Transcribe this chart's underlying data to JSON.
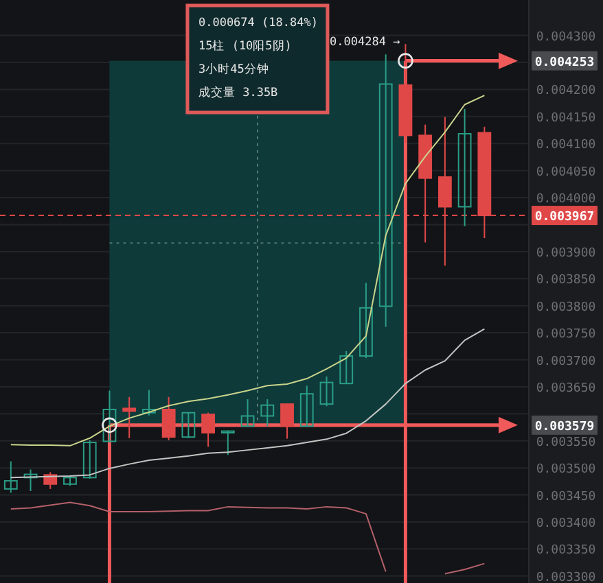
{
  "chart_data": {
    "type": "candlestick",
    "categories": [
      null,
      null,
      null,
      null,
      null,
      null,
      null,
      null,
      null,
      null,
      null,
      null,
      null,
      null,
      null,
      null,
      null,
      null,
      null,
      null,
      null,
      null,
      null,
      null,
      null
    ],
    "ohlc": [
      [
        0.003461,
        0.003512,
        0.003454,
        0.003476
      ],
      [
        0.003482,
        0.003497,
        0.003457,
        0.003488
      ],
      [
        0.003487,
        0.003492,
        0.003461,
        0.00347
      ],
      [
        0.00347,
        0.003484,
        0.003467,
        0.003482
      ],
      [
        0.003482,
        0.003551,
        0.00348,
        0.003547
      ],
      [
        0.003549,
        0.003643,
        0.003547,
        0.003608
      ],
      [
        0.00361,
        0.003631,
        0.003555,
        0.003605
      ],
      [
        0.003602,
        0.003644,
        0.003597,
        0.003608
      ],
      [
        0.003608,
        0.003631,
        0.003551,
        0.003557
      ],
      [
        0.003557,
        0.003602,
        0.003555,
        0.003602
      ],
      [
        0.003599,
        0.003602,
        0.003539,
        0.003565
      ],
      [
        0.003565,
        0.003568,
        0.003524,
        0.003568
      ],
      [
        0.003577,
        0.003627,
        0.003577,
        0.003596
      ],
      [
        0.003596,
        0.003627,
        0.003577,
        0.003616
      ],
      [
        0.003618,
        0.003618,
        0.003554,
        0.003577
      ],
      [
        0.003577,
        0.003652,
        0.003577,
        0.003637
      ],
      [
        0.003618,
        0.003669,
        0.003614,
        0.003658
      ],
      [
        0.003656,
        0.003716,
        0.003655,
        0.003707
      ],
      [
        0.003707,
        0.003842,
        0.003703,
        0.003796
      ],
      [
        0.003799,
        0.004265,
        0.003761,
        0.00421
      ],
      [
        0.004208,
        0.004284,
        0.004101,
        0.004115
      ],
      [
        0.004115,
        0.004135,
        0.003917,
        0.004036
      ],
      [
        0.004038,
        0.004149,
        0.003874,
        0.003983
      ],
      [
        0.003983,
        0.004164,
        0.003947,
        0.004118
      ],
      [
        0.00412,
        0.004131,
        0.003925,
        0.003967
      ]
    ],
    "colors": [
      "#2a9d86",
      "#2a9d86",
      "#e04848",
      "#2a9d86",
      "#2a9d86",
      "#2a9d86",
      "#e04848",
      "#2a9d86",
      "#e04848",
      "#2a9d86",
      "#e04848",
      "#2a9d86",
      "#2a9d86",
      "#2a9d86",
      "#e04848",
      "#2a9d86",
      "#2a9d86",
      "#2a9d86",
      "#2a9d86",
      "#2a9d86",
      "#e04848",
      "#e04848",
      "#e04848",
      "#2a9d86",
      "#e04848"
    ],
    "series": [
      {
        "type": "line",
        "color": "#c9d48c",
        "values": [
          0.003543,
          0.003542,
          0.003542,
          0.003541,
          0.003555,
          0.003577,
          0.003592,
          0.003603,
          0.003615,
          0.003623,
          0.003628,
          0.003635,
          0.003643,
          0.003652,
          0.003655,
          0.003665,
          0.003683,
          0.003703,
          0.003744,
          0.00393,
          0.004026,
          0.004076,
          0.004121,
          0.004172,
          0.004189
        ]
      },
      {
        "type": "line",
        "color": "#c4c4c4",
        "values": [
          0.003482,
          0.003483,
          0.003484,
          0.003485,
          0.003487,
          0.003499,
          0.003507,
          0.003514,
          0.003518,
          0.003522,
          0.003527,
          0.003529,
          0.003533,
          0.003537,
          0.003541,
          0.003547,
          0.003553,
          0.003564,
          0.003587,
          0.003618,
          0.003656,
          0.003681,
          0.003698,
          0.003736,
          0.003757
        ]
      },
      {
        "type": "line",
        "color": "#b3606a",
        "values": [
          0.003424,
          0.003426,
          0.003431,
          0.003436,
          0.00343,
          0.003419,
          0.003419,
          0.003419,
          0.00342,
          0.003421,
          0.003421,
          0.003428,
          0.003427,
          0.003426,
          0.003426,
          0.003424,
          0.003428,
          0.003426,
          0.003415,
          0.003308,
          null,
          null,
          0.003304,
          0.003312,
          0.003323
        ]
      },
      {
        "type": "scatter",
        "marker": "circle",
        "color": "#e8e8e8",
        "values": [
          null,
          null,
          null,
          null,
          null,
          0.003579,
          null,
          null,
          null,
          null,
          null,
          null,
          null,
          null,
          null,
          null,
          null,
          null,
          null,
          null,
          0.004253,
          null,
          null,
          null,
          null
        ]
      }
    ],
    "ylim": [
      0.003287,
      0.0043655
    ],
    "yticks": [
      {
        "value": 0.0033,
        "label": "0.003300"
      },
      {
        "value": 0.00335,
        "label": "0.003350"
      },
      {
        "value": 0.0034,
        "label": "0.003400"
      },
      {
        "value": 0.00345,
        "label": "0.003450"
      },
      {
        "value": 0.0035,
        "label": "0.003500"
      },
      {
        "value": 0.00355,
        "label": "0.003550"
      },
      {
        "value": 0.0036,
        "label": null
      },
      {
        "value": 0.00365,
        "label": "0.003650"
      },
      {
        "value": 0.0037,
        "label": "0.003700"
      },
      {
        "value": 0.00375,
        "label": "0.003750"
      },
      {
        "value": 0.0038,
        "label": "0.003800"
      },
      {
        "value": 0.00385,
        "label": "0.003850"
      },
      {
        "value": 0.0039,
        "label": "0.003900"
      },
      {
        "value": 0.00395,
        "label": null
      },
      {
        "value": 0.004,
        "label": "0.004000"
      },
      {
        "value": 0.00405,
        "label": "0.004050"
      },
      {
        "value": 0.0041,
        "label": "0.004100"
      },
      {
        "value": 0.00415,
        "label": "0.004150"
      },
      {
        "value": 0.0042,
        "label": "0.004200"
      },
      {
        "value": 0.00425,
        "label": null
      },
      {
        "value": 0.0043,
        "label": "0.004300"
      }
    ],
    "grid": "y",
    "bands": [
      {
        "axis": "y",
        "from": 0.003579,
        "to": 0.004253,
        "color": "#0f3a3a"
      }
    ],
    "ref_lines": [
      {
        "axis": "y",
        "value": 0.004253,
        "label": "0.004253",
        "color": "#f05a5a"
      },
      {
        "axis": "y",
        "value": 0.003579,
        "label": "0.003579",
        "color": "#f05a5a"
      },
      {
        "axis": "y",
        "value": 0.003967,
        "label": "0.003967",
        "color": "#e04848",
        "line_style": "dashed"
      },
      {
        "axis": "y",
        "value": 0.003916,
        "color": "#6a8a8a",
        "line_style": "dotted"
      }
    ],
    "annotations": [
      "0.000674 (18.84%)",
      "15柱 (10阳5阴)",
      "3小时45分钟",
      "成交量 3.35B",
      "0.004284 →"
    ]
  }
}
